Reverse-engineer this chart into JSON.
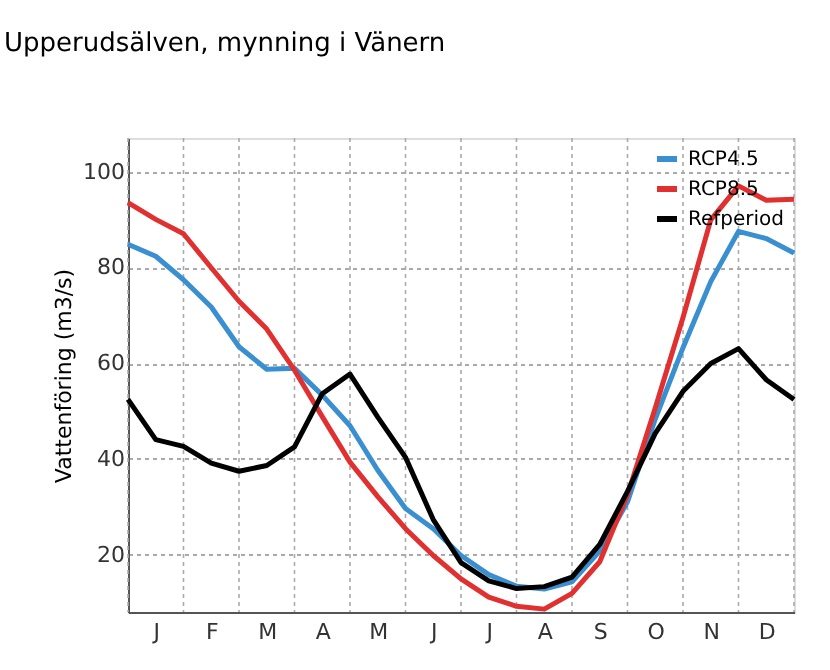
{
  "chart_data": {
    "type": "line",
    "title": "Upperudsälven, mynning i Vänern",
    "ylabel": "Vattenföring (m3/s)",
    "categories": [
      null,
      "J",
      null,
      "F",
      null,
      "M",
      null,
      "A",
      null,
      "M",
      null,
      "J",
      null,
      "J",
      null,
      "A",
      null,
      "S",
      null,
      "O",
      null,
      "N",
      null,
      "D",
      null
    ],
    "ylim": [
      8,
      107
    ],
    "yticks": [
      20,
      40,
      60,
      80,
      100
    ],
    "grid": true,
    "legend": "top right",
    "line_style": "solid",
    "marker": "none",
    "series": [
      {
        "name": "RCP4.5",
        "color": "#3a8fd0",
        "values": [
          84.8,
          82.3,
          77.4,
          71.7,
          63.4,
          58.7,
          58.9,
          53.3,
          46.9,
          37.6,
          29.6,
          25.4,
          19.8,
          15.8,
          13.4,
          12.8,
          14.3,
          20.7,
          31,
          48.3,
          63.2,
          77,
          87.5,
          86,
          83
        ]
      },
      {
        "name": "RCP8.5",
        "color": "#e03030",
        "values": [
          93.5,
          90,
          87,
          79.9,
          72.9,
          67.1,
          58.5,
          48.8,
          39.3,
          32.1,
          25.4,
          19.8,
          14.9,
          11.1,
          9.2,
          8.6,
          11.9,
          18.5,
          32.5,
          50.6,
          69.5,
          89.9,
          97,
          94,
          94.2
        ]
      },
      {
        "name": "Refperiod",
        "color": "#000000",
        "values": [
          52.4,
          44,
          42.6,
          39.1,
          37.4,
          38.6,
          42.5,
          53.6,
          57.7,
          48.7,
          40.3,
          27.3,
          18.3,
          14.5,
          12.9,
          13.3,
          15.3,
          22.1,
          33.2,
          45.3,
          54.1,
          59.9,
          63,
          56.5,
          52.4
        ]
      }
    ]
  }
}
